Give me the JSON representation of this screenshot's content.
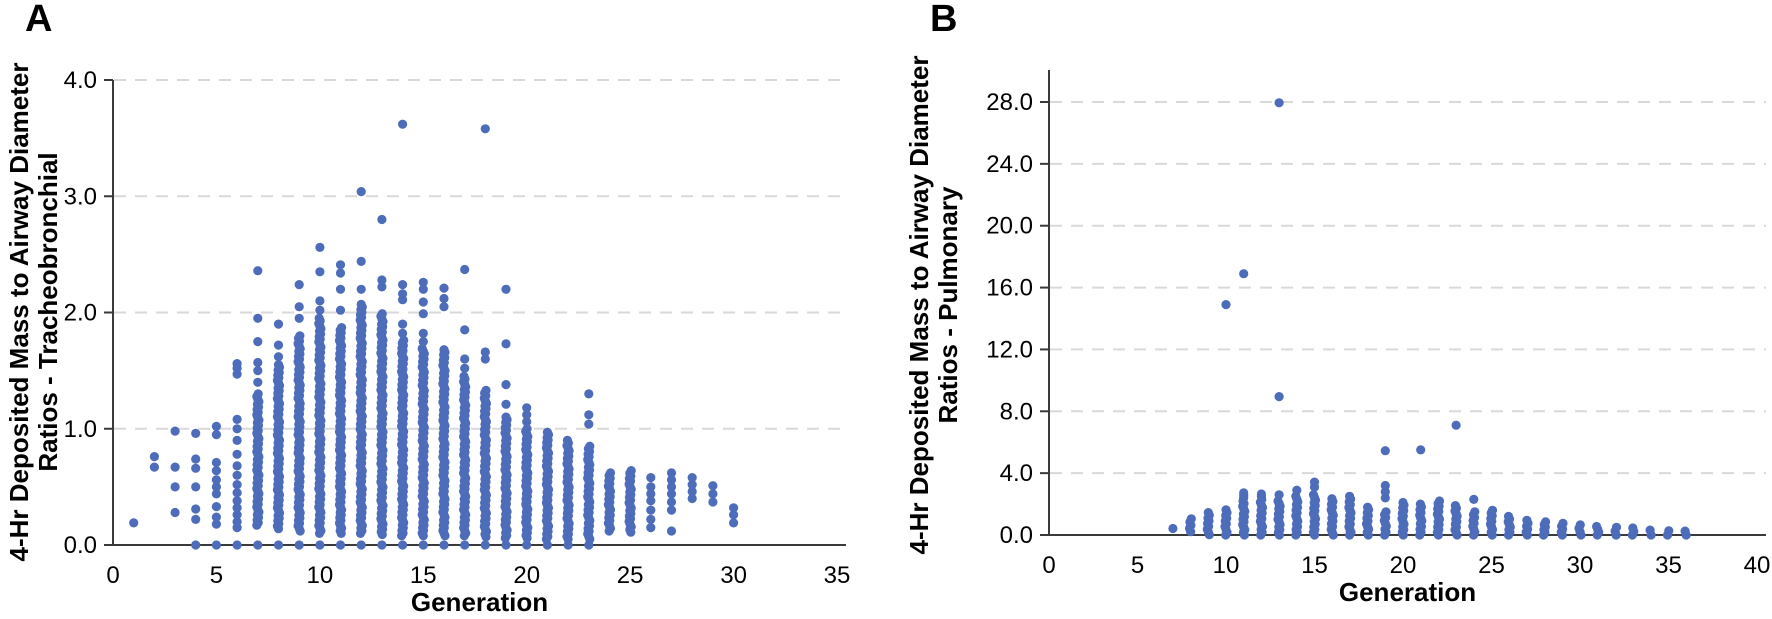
{
  "figure": {
    "background": "#ffffff",
    "marker_color": "#4d6cba",
    "gridline_color": "#d9d9d9",
    "axis_color": "#3a3a3a"
  },
  "chart_data": [
    {
      "panel_label": "A",
      "type": "scatter",
      "xlabel": "Generation",
      "ylabel_lines": [
        "4-Hr Deposited Mass to Airway Diameter",
        "Ratios - Tracheobronchial"
      ],
      "xlim": [
        0,
        35
      ],
      "ylim": [
        0.0,
        4.0
      ],
      "xticks": [
        0,
        5,
        10,
        15,
        20,
        25,
        30,
        35
      ],
      "ytick_values": [
        0,
        1,
        2,
        3,
        4
      ],
      "ytick_labels": [
        "0.0",
        "1.0",
        "2.0",
        "3.0",
        "4.0"
      ],
      "grid": "horizontal-dashed",
      "legend": "none",
      "columns": [
        {
          "gen": 1,
          "points": [
            0.19
          ]
        },
        {
          "gen": 2,
          "points": [
            0.67,
            0.76
          ]
        },
        {
          "gen": 3,
          "points": [
            0.28,
            0.5,
            0.67,
            0.98
          ]
        },
        {
          "gen": 4,
          "points": [
            0.22,
            0.31,
            0.5,
            0.66,
            0.74,
            0.96
          ],
          "zero_dot": true
        },
        {
          "gen": 5,
          "points": [
            0.18,
            0.24,
            0.33,
            0.44,
            0.5,
            0.56,
            0.64,
            0.71,
            0.95,
            1.02
          ],
          "zero_dot": true
        },
        {
          "gen": 6,
          "points": [
            0.15,
            0.2,
            0.26,
            0.32,
            0.38,
            0.45,
            0.52,
            0.6,
            0.68,
            0.78,
            0.9,
            1.0,
            1.08,
            1.47,
            1.52,
            1.56
          ],
          "zero_dot": true
        },
        {
          "gen": 7,
          "range": [
            0.17,
            1.3
          ],
          "outliers": [
            1.4,
            1.5,
            1.57,
            1.75,
            1.95,
            2.36
          ],
          "zero_dot": true
        },
        {
          "gen": 8,
          "range": [
            0.14,
            1.55
          ],
          "outliers": [
            1.62,
            1.72,
            1.9
          ],
          "zero_dot": true
        },
        {
          "gen": 9,
          "range": [
            0.12,
            1.8
          ],
          "outliers": [
            1.95,
            2.05,
            2.24
          ],
          "zero_dot": true
        },
        {
          "gen": 10,
          "range": [
            0.1,
            1.95
          ],
          "outliers": [
            2.02,
            2.1,
            2.35,
            2.56
          ],
          "zero_dot": true
        },
        {
          "gen": 11,
          "range": [
            0.1,
            1.87
          ],
          "outliers": [
            2.02,
            2.2,
            2.34,
            2.41
          ],
          "zero_dot": true
        },
        {
          "gen": 12,
          "range": [
            0.1,
            2.07
          ],
          "outliers": [
            2.2,
            2.44,
            3.04
          ],
          "zero_dot": true
        },
        {
          "gen": 13,
          "range": [
            0.09,
            1.99
          ],
          "outliers": [
            2.22,
            2.28,
            2.8
          ],
          "zero_dot": true
        },
        {
          "gen": 14,
          "range": [
            0.08,
            1.76
          ],
          "outliers": [
            1.82,
            1.9,
            2.11,
            2.16,
            2.24,
            3.62
          ],
          "zero_dot": true
        },
        {
          "gen": 15,
          "range": [
            0.08,
            1.69
          ],
          "outliers": [
            1.75,
            1.82,
            1.99,
            2.09,
            2.2,
            2.26
          ],
          "zero_dot": true
        },
        {
          "gen": 16,
          "range": [
            0.08,
            1.68
          ],
          "outliers": [
            2.05,
            2.12,
            2.21
          ],
          "zero_dot": true
        },
        {
          "gen": 17,
          "range": [
            0.08,
            1.45
          ],
          "outliers": [
            1.52,
            1.6,
            1.85,
            2.37
          ],
          "zero_dot": true
        },
        {
          "gen": 18,
          "range": [
            0.07,
            1.33
          ],
          "outliers": [
            1.6,
            1.66,
            3.58
          ],
          "zero_dot": true
        },
        {
          "gen": 19,
          "range": [
            0.06,
            1.1
          ],
          "outliers": [
            1.21,
            1.38,
            1.73,
            2.2
          ],
          "zero_dot": true
        },
        {
          "gen": 20,
          "range": [
            0.06,
            1.0
          ],
          "outliers": [
            1.06,
            1.12,
            1.18
          ],
          "zero_dot": true
        },
        {
          "gen": 21,
          "range": [
            0.05,
            0.97
          ],
          "zero_dot": true
        },
        {
          "gen": 22,
          "range": [
            0.05,
            0.9
          ],
          "zero_dot": true
        },
        {
          "gen": 23,
          "range": [
            0.05,
            0.85
          ],
          "outliers": [
            1.04,
            1.12,
            1.3
          ],
          "zero_dot": true
        },
        {
          "gen": 24,
          "range": [
            0.12,
            0.62
          ]
        },
        {
          "gen": 25,
          "range": [
            0.11,
            0.64
          ]
        },
        {
          "gen": 26,
          "points": [
            0.15,
            0.22,
            0.3,
            0.38,
            0.44,
            0.5,
            0.58
          ]
        },
        {
          "gen": 27,
          "points": [
            0.12,
            0.3,
            0.37,
            0.44,
            0.5,
            0.56,
            0.62
          ]
        },
        {
          "gen": 28,
          "points": [
            0.4,
            0.46,
            0.52,
            0.58
          ]
        },
        {
          "gen": 29,
          "points": [
            0.37,
            0.44,
            0.51
          ]
        },
        {
          "gen": 30,
          "points": [
            0.19,
            0.26,
            0.32
          ]
        }
      ]
    },
    {
      "panel_label": "B",
      "type": "scatter",
      "xlabel": "Generation",
      "ylabel_lines": [
        "4-Hr Deposited Mass to Airway Diameter",
        "Ratios - Pulmonary"
      ],
      "xlim": [
        0,
        40
      ],
      "ylim": [
        0.0,
        28.0
      ],
      "xticks": [
        0,
        5,
        10,
        15,
        20,
        25,
        30,
        35,
        40
      ],
      "ytick_values": [
        0,
        4,
        8,
        12,
        16,
        20,
        24,
        28
      ],
      "ytick_labels": [
        "0.0",
        "4.0",
        "8.0",
        "12.0",
        "16.0",
        "20.0",
        "24.0",
        "28.0"
      ],
      "grid": "horizontal-dashed",
      "legend": "none",
      "columns": [
        {
          "gen": 7,
          "points": [
            0.42
          ]
        },
        {
          "gen": 8,
          "range": [
            0.22,
            1.05
          ]
        },
        {
          "gen": 9,
          "range": [
            0.02,
            1.45
          ]
        },
        {
          "gen": 10,
          "range": [
            0.0,
            1.62
          ],
          "outliers": [
            14.9
          ]
        },
        {
          "gen": 11,
          "range": [
            0.0,
            2.2
          ],
          "outliers": [
            2.4,
            2.55,
            2.72,
            16.9
          ]
        },
        {
          "gen": 12,
          "range": [
            0.0,
            2.3
          ],
          "outliers": [
            2.5,
            2.65
          ]
        },
        {
          "gen": 13,
          "range": [
            0.0,
            2.2
          ],
          "outliers": [
            2.6,
            8.95,
            27.95
          ]
        },
        {
          "gen": 14,
          "range": [
            0.0,
            2.5
          ],
          "outliers": [
            2.9
          ]
        },
        {
          "gen": 15,
          "range": [
            0.0,
            2.6
          ],
          "outliers": [
            3.1,
            3.42
          ]
        },
        {
          "gen": 16,
          "range": [
            0.0,
            2.35
          ]
        },
        {
          "gen": 17,
          "range": [
            0.0,
            2.5
          ]
        },
        {
          "gen": 18,
          "range": [
            0.0,
            1.8
          ]
        },
        {
          "gen": 19,
          "range": [
            0.0,
            1.5
          ],
          "outliers": [
            2.4,
            2.8,
            3.2,
            5.45
          ]
        },
        {
          "gen": 20,
          "range": [
            0.0,
            2.1
          ]
        },
        {
          "gen": 21,
          "range": [
            0.0,
            2.0
          ],
          "outliers": [
            5.5
          ]
        },
        {
          "gen": 22,
          "range": [
            0.0,
            2.2
          ]
        },
        {
          "gen": 23,
          "range": [
            0.0,
            1.9
          ],
          "outliers": [
            7.1
          ]
        },
        {
          "gen": 24,
          "range": [
            0.0,
            1.5
          ],
          "outliers": [
            2.3
          ]
        },
        {
          "gen": 25,
          "range": [
            0.0,
            1.6
          ]
        },
        {
          "gen": 26,
          "range": [
            0.0,
            1.2
          ]
        },
        {
          "gen": 27,
          "range": [
            0.0,
            0.95
          ]
        },
        {
          "gen": 28,
          "range": [
            0.0,
            0.85
          ]
        },
        {
          "gen": 29,
          "range": [
            0.0,
            0.75
          ]
        },
        {
          "gen": 30,
          "range": [
            0.0,
            0.65
          ]
        },
        {
          "gen": 31,
          "range": [
            0.0,
            0.55
          ]
        },
        {
          "gen": 32,
          "range": [
            0.0,
            0.5
          ]
        },
        {
          "gen": 33,
          "range": [
            0.0,
            0.45
          ]
        },
        {
          "gen": 34,
          "range": [
            0.0,
            0.32
          ]
        },
        {
          "gen": 35,
          "range": [
            0.0,
            0.28
          ]
        },
        {
          "gen": 36,
          "range": [
            0.0,
            0.25
          ]
        }
      ]
    }
  ]
}
